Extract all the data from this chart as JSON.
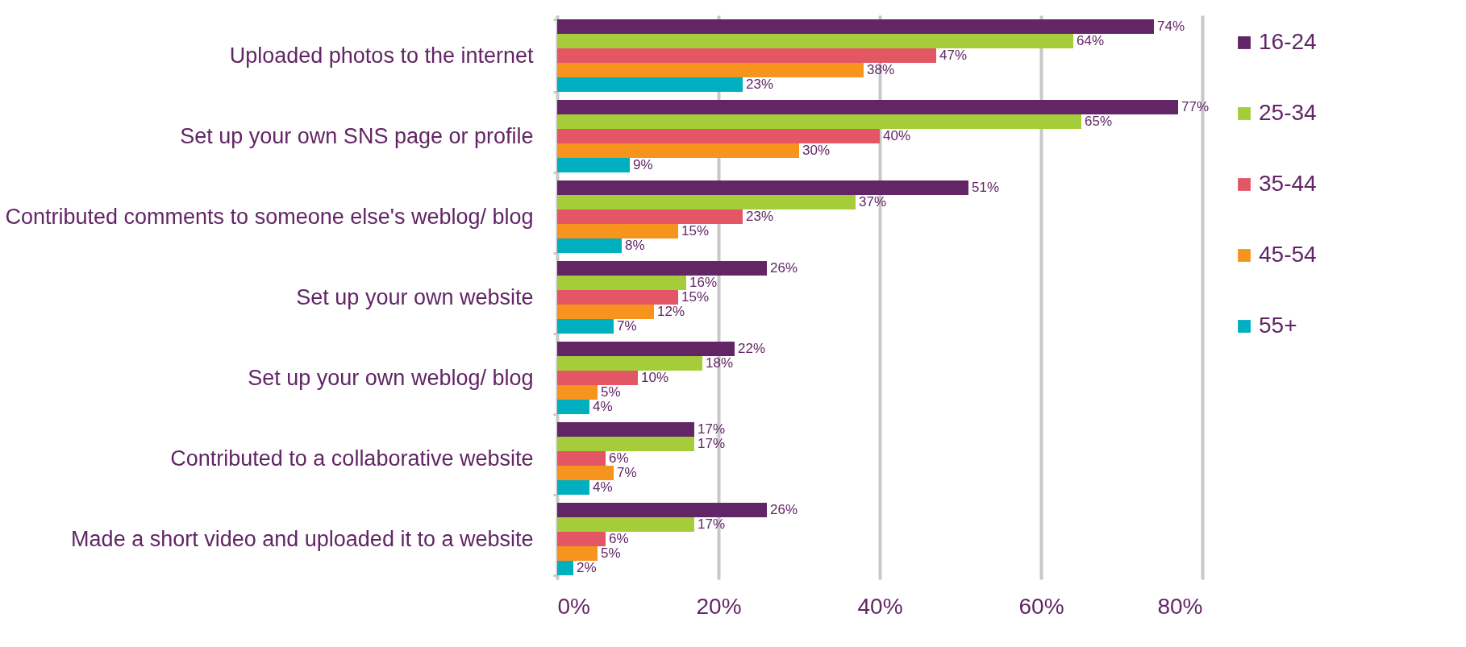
{
  "chart_data": {
    "type": "bar",
    "orientation": "horizontal",
    "categories": [
      "Uploaded photos to the internet",
      "Set up your own SNS page or profile",
      "Contributed comments to someone else's weblog/ blog",
      "Set up your own website",
      "Set up your own weblog/ blog",
      "Contributed to a collaborative website",
      "Made a short video and uploaded it to a website"
    ],
    "series": [
      {
        "name": "16-24",
        "color": "#622565",
        "values": [
          74,
          77,
          51,
          26,
          22,
          17,
          26
        ],
        "value_labels": [
          "74%",
          "77%",
          "51%",
          "26%",
          "22%",
          "17%",
          "26%"
        ]
      },
      {
        "name": "25-34",
        "color": "#a5cd39",
        "values": [
          64,
          65,
          37,
          16,
          18,
          17,
          17
        ],
        "value_labels": [
          "64%",
          "65%",
          "37%",
          "16%",
          "18%",
          "17%",
          "17%"
        ]
      },
      {
        "name": "35-44",
        "color": "#e35664",
        "values": [
          47,
          40,
          23,
          15,
          10,
          6,
          6
        ],
        "value_labels": [
          "47%",
          "40%",
          "23%",
          "15%",
          "10%",
          "6%",
          "6%"
        ]
      },
      {
        "name": "45-54",
        "color": "#f7941d",
        "values": [
          38,
          30,
          15,
          12,
          5,
          7,
          5
        ],
        "value_labels": [
          "38%",
          "30%",
          "15%",
          "12%",
          "5%",
          "7%",
          "5%"
        ]
      },
      {
        "name": "55+",
        "color": "#00b0c0",
        "values": [
          23,
          9,
          8,
          7,
          4,
          4,
          2
        ],
        "value_labels": [
          "23%",
          "9%",
          "8%",
          "7%",
          "4%",
          "4%",
          "2%"
        ]
      }
    ],
    "xlim": [
      0,
      80
    ],
    "xticks": [
      {
        "value": 0,
        "label": "0%"
      },
      {
        "value": 20,
        "label": "20%"
      },
      {
        "value": 40,
        "label": "40%"
      },
      {
        "value": 60,
        "label": "60%"
      },
      {
        "value": 80,
        "label": "80%"
      }
    ],
    "grid": "x",
    "legend": "right"
  }
}
